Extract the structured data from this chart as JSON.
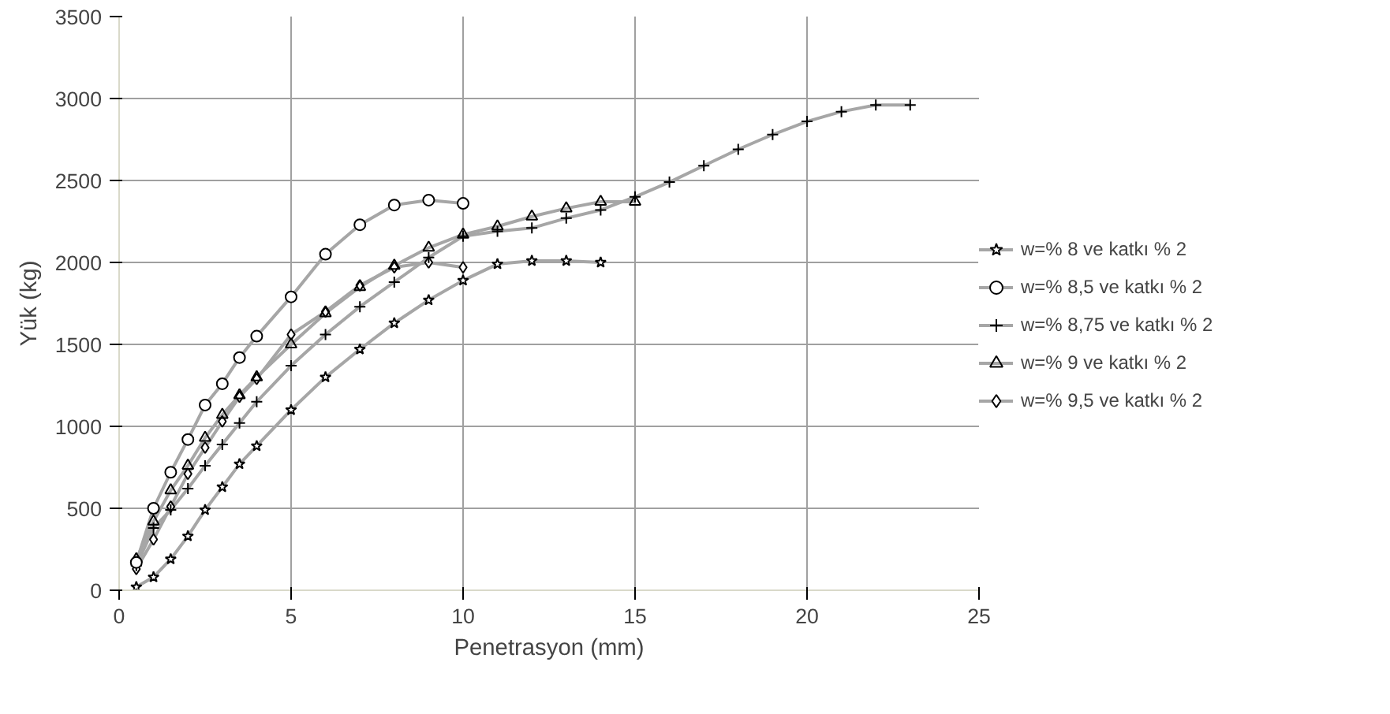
{
  "chart_data": {
    "type": "line",
    "xlabel": "Penetrasyon (mm)",
    "ylabel": "Yük (kg)",
    "xlim": [
      0,
      25
    ],
    "ylim": [
      0,
      3500
    ],
    "xticks": [
      0,
      5,
      10,
      15,
      20,
      25
    ],
    "yticks": [
      0,
      500,
      1000,
      1500,
      2000,
      2500,
      3000,
      3500
    ],
    "grid": true,
    "legend": "right",
    "line_style": "solid",
    "series": [
      {
        "name": "w=% 8 ve katkı % 2",
        "color": "#000000",
        "marker": "star",
        "x": [
          0.5,
          1,
          1.5,
          2,
          2.5,
          3,
          3.5,
          4,
          5,
          6,
          7,
          8,
          9,
          10,
          11,
          12,
          13,
          14
        ],
        "values": [
          20,
          80,
          190,
          330,
          490,
          630,
          770,
          880,
          1100,
          1300,
          1470,
          1630,
          1770,
          1890,
          1990,
          2010,
          2010,
          2000
        ]
      },
      {
        "name": "w=% 8,5 ve katkı % 2",
        "color": "#000000",
        "marker": "circle",
        "x": [
          0.5,
          1,
          1.5,
          2,
          2.5,
          3,
          3.5,
          4,
          5,
          6,
          7,
          8,
          9,
          10
        ],
        "values": [
          170,
          500,
          720,
          920,
          1130,
          1260,
          1420,
          1550,
          1790,
          2050,
          2230,
          2350,
          2380,
          2360
        ]
      },
      {
        "name": "w=% 8,75 ve katkı % 2",
        "color": "#000000",
        "marker": "cross",
        "x": [
          0.5,
          1,
          1.5,
          2,
          2.5,
          3,
          3.5,
          4,
          5,
          6,
          7,
          8,
          9,
          10,
          11,
          12,
          13,
          14,
          15,
          16,
          17,
          18,
          19,
          20,
          21,
          22,
          23
        ],
        "values": [
          150,
          380,
          490,
          620,
          760,
          890,
          1020,
          1150,
          1370,
          1560,
          1730,
          1880,
          2030,
          2160,
          2190,
          2210,
          2270,
          2320,
          2400,
          2490,
          2590,
          2690,
          2780,
          2860,
          2920,
          2960,
          2960
        ]
      },
      {
        "name": "w=% 9 ve katkı % 2",
        "color": "#000000",
        "marker": "triangle",
        "x": [
          0.5,
          1,
          1.5,
          2,
          2.5,
          3,
          3.5,
          4,
          5,
          6,
          7,
          8,
          9,
          10,
          11,
          12,
          13,
          14,
          15
        ],
        "values": [
          190,
          420,
          610,
          760,
          930,
          1070,
          1190,
          1300,
          1500,
          1690,
          1850,
          1980,
          2090,
          2170,
          2220,
          2280,
          2330,
          2370,
          2370
        ]
      },
      {
        "name": "w=% 9,5 ve katkı % 2",
        "color": "#000000",
        "marker": "diamond",
        "x": [
          0.5,
          1,
          1.5,
          2,
          2.5,
          3,
          3.5,
          4,
          5,
          6,
          7,
          8,
          9,
          10
        ],
        "values": [
          130,
          310,
          510,
          710,
          870,
          1030,
          1180,
          1290,
          1560,
          1700,
          1860,
          1970,
          2000,
          1970
        ]
      }
    ]
  }
}
